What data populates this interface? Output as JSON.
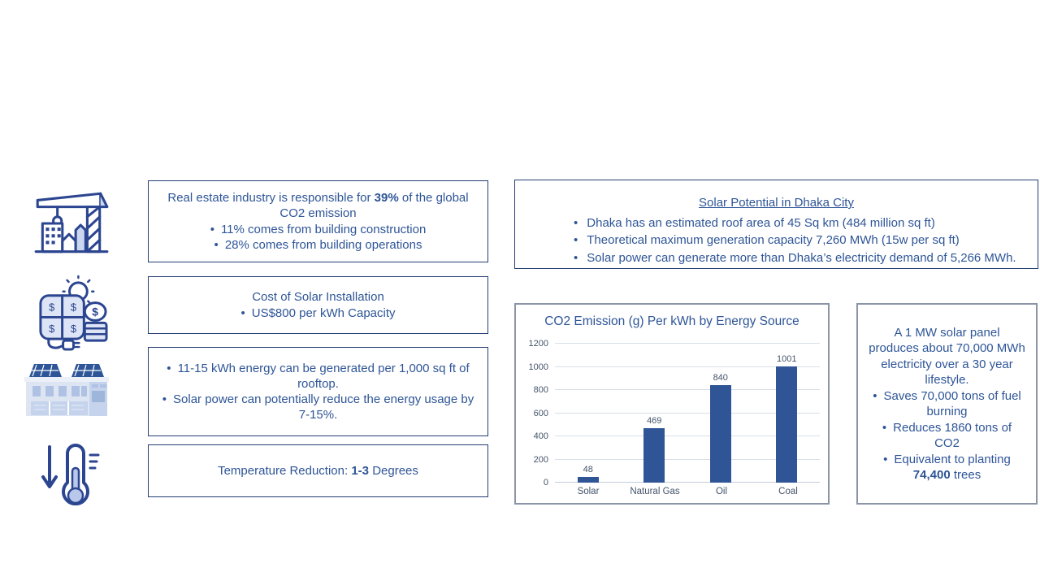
{
  "colors": {
    "text_blue": "#2E5597",
    "border_navy": "#253D74",
    "border_gray": "#8A94A6",
    "bar_blue": "#2F5597",
    "gridline": "#D9DFE8",
    "axis_text": "#44546A",
    "icon_stroke": "#2B4590",
    "icon_fill": "#CBD6F0"
  },
  "icons": {
    "left_column": [
      "construction-crane",
      "solar-installation-cost",
      "solar-rooftop-warehouse",
      "temperature-reduction"
    ]
  },
  "left_boxes": {
    "real_estate": {
      "heading_pre": "Real estate industry is responsible for ",
      "heading_bold": "39%",
      "heading_post": " of the global CO2 emission",
      "bullets": [
        "11% comes from building construction",
        "28% comes from building operations"
      ]
    },
    "solar_cost": {
      "heading": "Cost of Solar Installation",
      "bullet": "US$800 per kWh Capacity"
    },
    "rooftop": {
      "bullets": [
        "11-15 kWh energy can be generated per 1,000 sq ft of rooftop.",
        "Solar power can potentially reduce the energy usage by 7-15%."
      ]
    },
    "temperature": {
      "text_pre": "Temperature Reduction: ",
      "text_bold": "1-3",
      "text_post": " Degrees"
    }
  },
  "dhaka_box": {
    "title": "Solar Potential in Dhaka City",
    "bullets": [
      "Dhaka has an estimated roof area of 45 Sq km (484 million sq ft)",
      "Theoretical maximum generation capacity 7,260 MWh (15w per sq ft)",
      "Solar power can generate more than Dhaka’s electricity demand of 5,266 MWh."
    ]
  },
  "mw_box": {
    "intro": "A 1 MW solar panel produces about 70,000 MWh electricity over a 30 year lifestyle.",
    "bullet_1": "Saves 70,000 tons of fuel burning",
    "bullet_2": "Reduces 1860 tons of CO2",
    "bullet_3_pre": "Equivalent to planting ",
    "bullet_3_bold": "74,400",
    "bullet_3_post": " trees"
  },
  "chart_data": {
    "type": "bar",
    "title": "CO2 Emission (g) Per kWh by Energy Source",
    "categories": [
      "Solar",
      "Natural Gas",
      "Oil",
      "Coal"
    ],
    "values": [
      48,
      469,
      840,
      1001
    ],
    "xlabel": "",
    "ylabel": "",
    "ylim": [
      0,
      1200
    ],
    "yticks": [
      0,
      200,
      400,
      600,
      800,
      1000,
      1200
    ],
    "grid": true,
    "data_labels": true,
    "legend": "none",
    "bar_color": "#2F5597"
  }
}
